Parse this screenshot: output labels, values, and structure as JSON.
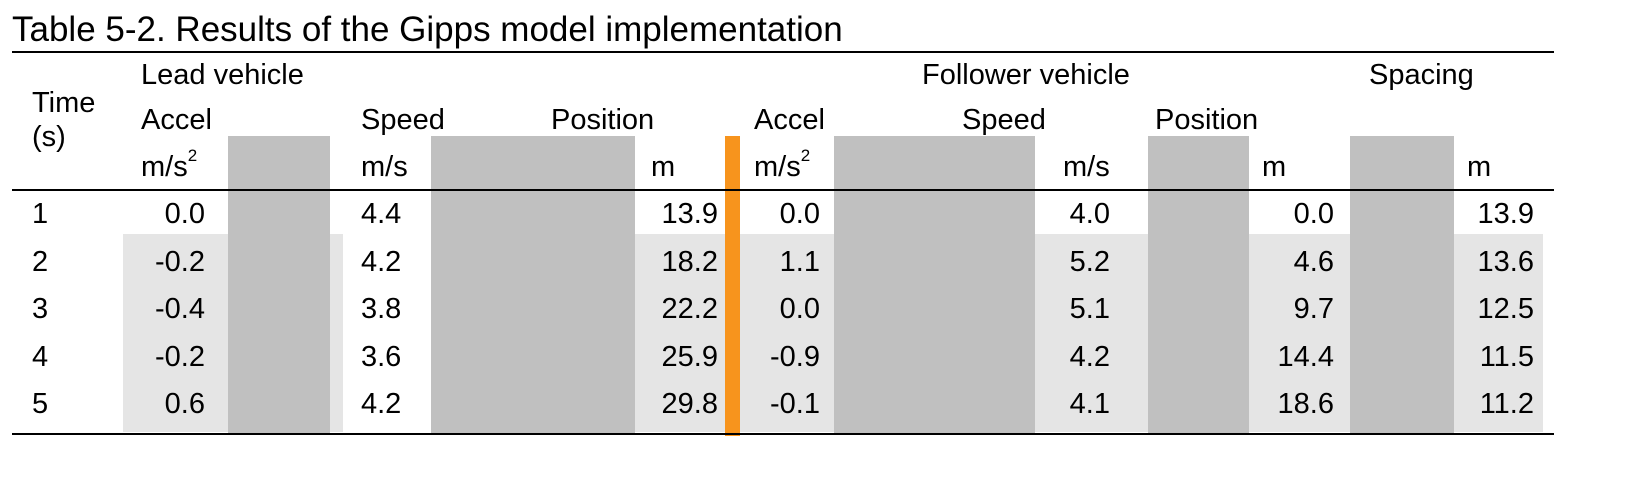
{
  "caption": "Table 5-2.  Results of the Gipps model implementation",
  "header": {
    "time_label_1": "Time",
    "time_label_2": "(s)",
    "lead_group": "Lead vehicle",
    "follower_group": "Follower vehicle",
    "spacing_group": "Spacing",
    "lead_accel": "Accel",
    "lead_speed": "Speed",
    "lead_position": "Position",
    "follower_accel": "Accel",
    "follower_speed": "Speed",
    "follower_position": "Position",
    "unit_accel_base": "m/s",
    "unit_accel_exp": "2",
    "unit_speed": "m/s",
    "unit_position": "m",
    "unit_spacing": "m"
  },
  "rows": [
    {
      "time": "1",
      "lead_accel": "0.0",
      "lead_speed": "4.4",
      "lead_position": "13.9",
      "follower_accel": "0.0",
      "follower_speed": "4.0",
      "follower_position": "0.0",
      "spacing": "13.9"
    },
    {
      "time": "2",
      "lead_accel": "-0.2",
      "lead_speed": "4.2",
      "lead_position": "18.2",
      "follower_accel": "1.1",
      "follower_speed": "5.2",
      "follower_position": "4.6",
      "spacing": "13.6"
    },
    {
      "time": "3",
      "lead_accel": "-0.4",
      "lead_speed": "3.8",
      "lead_position": "22.2",
      "follower_accel": "0.0",
      "follower_speed": "5.1",
      "follower_position": "9.7",
      "spacing": "12.5"
    },
    {
      "time": "4",
      "lead_accel": "-0.2",
      "lead_speed": "3.6",
      "lead_position": "25.9",
      "follower_accel": "-0.9",
      "follower_speed": "4.2",
      "follower_position": "14.4",
      "spacing": "11.5"
    },
    {
      "time": "5",
      "lead_accel": "0.6",
      "lead_speed": "4.2",
      "lead_position": "29.8",
      "follower_accel": "-0.1",
      "follower_speed": "4.1",
      "follower_position": "18.6",
      "spacing": "11.2"
    }
  ],
  "colors": {
    "shade": "#e5e5e5",
    "gray_block": "#c0c0c0",
    "orange_divider": "#f7941d"
  }
}
